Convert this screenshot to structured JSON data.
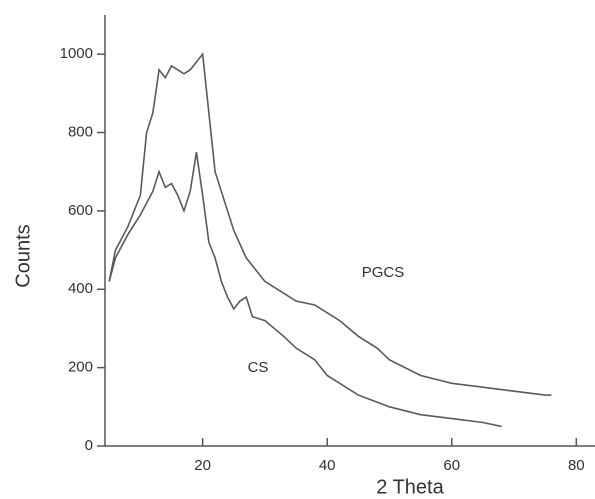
{
  "chart_data": {
    "type": "line",
    "x_label": "2 Theta",
    "y_label": "Counts",
    "xlim": [
      4,
      83
    ],
    "ylim": [
      0,
      1100
    ],
    "xticks": [
      20,
      40,
      60,
      80
    ],
    "yticks": [
      0,
      200,
      400,
      600,
      800,
      1000
    ],
    "series": [
      {
        "name": "PGCS",
        "color": "#5a5a5a",
        "x": [
          5,
          6,
          8,
          10,
          11,
          12,
          13,
          14,
          15,
          16,
          17,
          18,
          19,
          20,
          21,
          22,
          23,
          25,
          27,
          30,
          33,
          35,
          38,
          40,
          42,
          45,
          48,
          50,
          55,
          60,
          65,
          70,
          75,
          76
        ],
        "values": [
          420,
          500,
          560,
          640,
          800,
          850,
          960,
          940,
          970,
          960,
          950,
          960,
          980,
          1000,
          850,
          700,
          650,
          550,
          480,
          420,
          390,
          370,
          360,
          340,
          320,
          280,
          250,
          220,
          180,
          160,
          150,
          140,
          130,
          130
        ]
      },
      {
        "name": "CS",
        "color": "#5a5a5a",
        "x": [
          5,
          6,
          8,
          10,
          12,
          13,
          14,
          15,
          16,
          17,
          18,
          19,
          20,
          21,
          22,
          23,
          24,
          25,
          26,
          27,
          28,
          30,
          33,
          35,
          38,
          40,
          45,
          50,
          55,
          60,
          65,
          68
        ],
        "values": [
          420,
          480,
          540,
          590,
          650,
          700,
          660,
          670,
          640,
          600,
          650,
          750,
          640,
          520,
          480,
          420,
          380,
          350,
          370,
          380,
          330,
          320,
          280,
          250,
          220,
          180,
          130,
          100,
          80,
          70,
          60,
          50
        ]
      }
    ]
  }
}
